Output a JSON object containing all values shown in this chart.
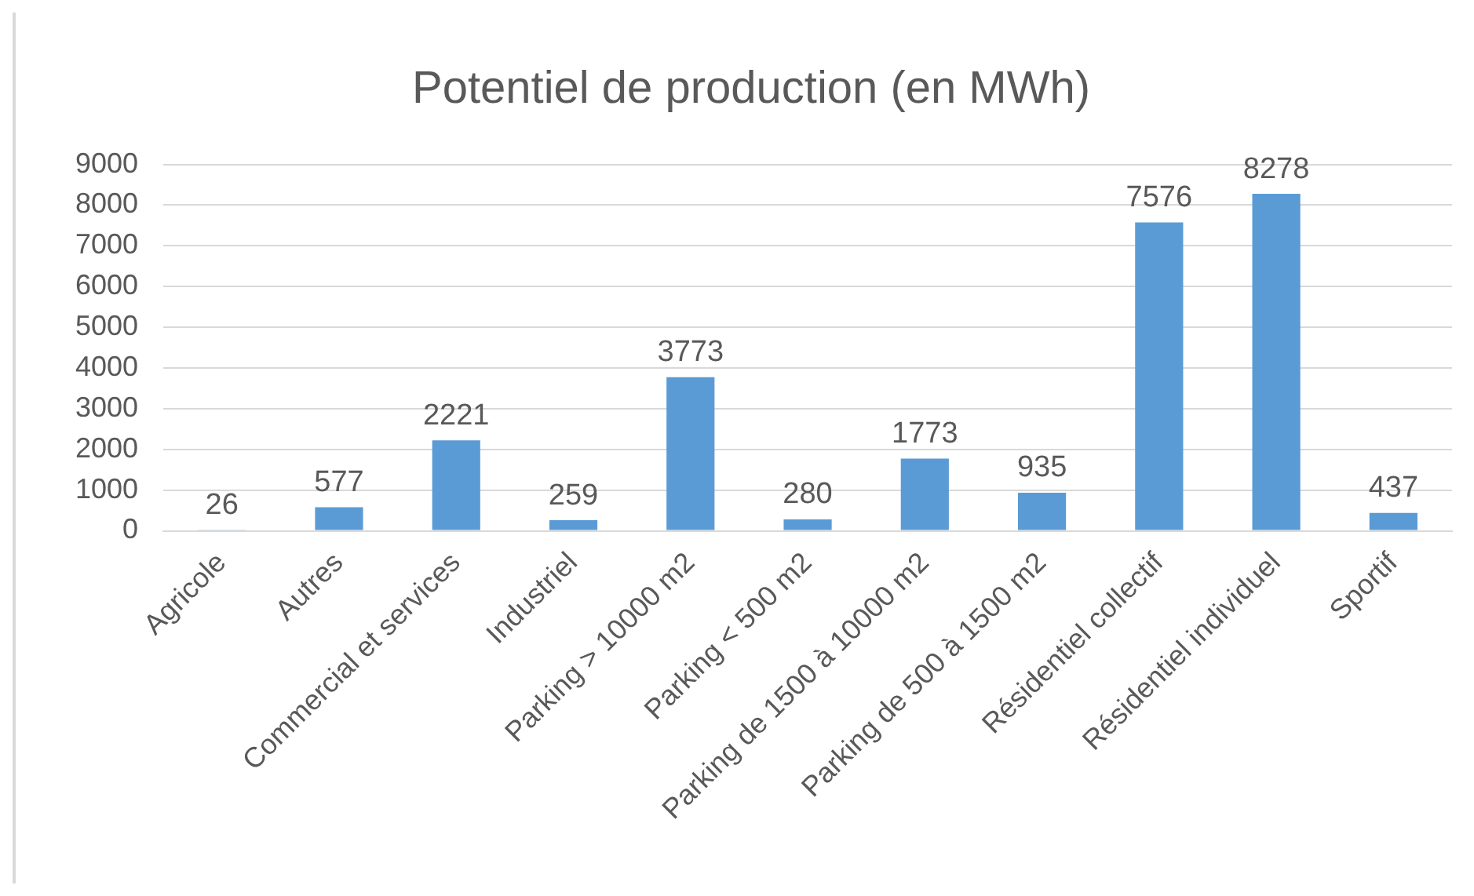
{
  "chart_data": {
    "type": "bar",
    "title": "Potentiel de production (en MWh)",
    "categories": [
      "Agricole",
      "Autres",
      "Commercial et services",
      "Industriel",
      "Parking > 10000 m2",
      "Parking < 500 m2",
      "Parking de 1500 à 10000 m2",
      "Parking de 500 à 1500 m2",
      "Résidentiel collectif",
      "Résidentiel individuel",
      "Sportif"
    ],
    "values": [
      26,
      577,
      2221,
      259,
      3773,
      280,
      1773,
      935,
      7576,
      8278,
      437
    ],
    "color": "#5b9bd5",
    "ylim": [
      0,
      9000
    ],
    "yticks": [
      0,
      1000,
      2000,
      3000,
      4000,
      5000,
      6000,
      7000,
      8000,
      9000
    ],
    "grid": "y",
    "data_labels": true
  }
}
